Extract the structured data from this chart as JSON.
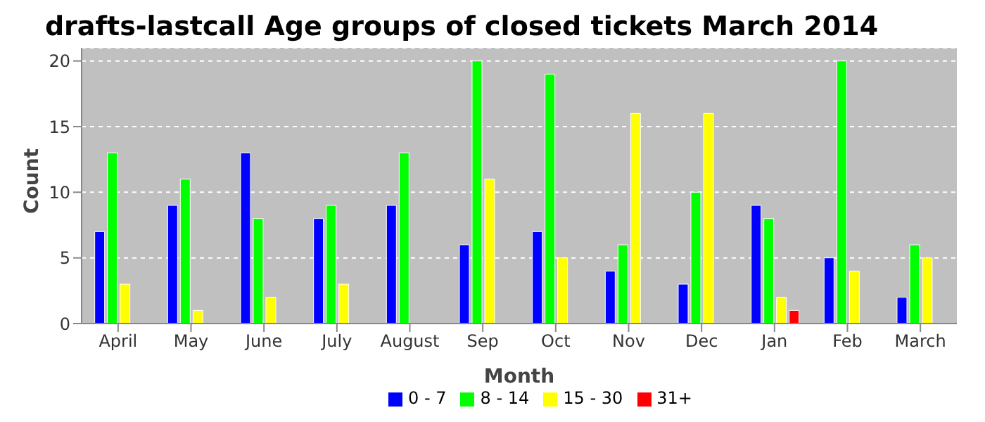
{
  "chart_data": {
    "type": "bar",
    "title": "drafts-lastcall Age groups of closed tickets March 2014",
    "xlabel": "Month",
    "ylabel": "Count",
    "categories": [
      "April",
      "May",
      "June",
      "July",
      "August",
      "Sep",
      "Oct",
      "Nov",
      "Dec",
      "Jan",
      "Feb",
      "March"
    ],
    "series": [
      {
        "name": "0 - 7",
        "color": "#0000ff",
        "values": [
          7,
          9,
          13,
          8,
          9,
          6,
          7,
          4,
          3,
          9,
          5,
          2
        ]
      },
      {
        "name": "8 - 14",
        "color": "#00ff00",
        "values": [
          13,
          11,
          8,
          9,
          13,
          20,
          19,
          6,
          10,
          8,
          20,
          6
        ]
      },
      {
        "name": "15 - 30",
        "color": "#ffff00",
        "values": [
          3,
          1,
          2,
          3,
          0,
          11,
          5,
          16,
          16,
          2,
          4,
          5
        ]
      },
      {
        "name": "31+",
        "color": "#ff0000",
        "values": [
          0,
          0,
          0,
          0,
          0,
          0,
          0,
          0,
          0,
          1,
          0,
          0
        ]
      }
    ],
    "ylim": [
      0,
      21
    ],
    "yticks": [
      0,
      5,
      10,
      15,
      20
    ],
    "grid": "y",
    "legend": "bottom"
  }
}
